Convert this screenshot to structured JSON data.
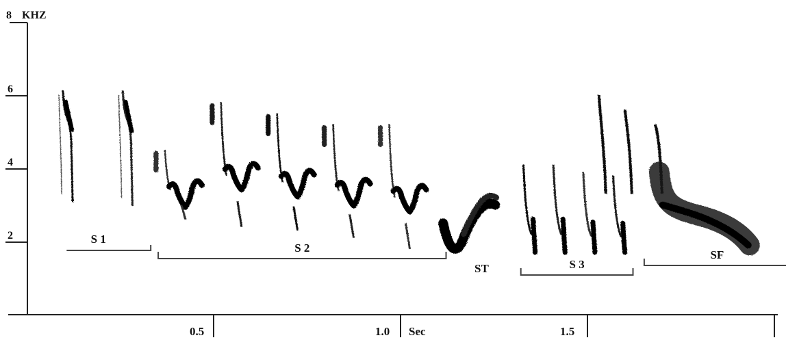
{
  "chart_data": {
    "type": "spectrogram",
    "y_axis": {
      "unit_label": "KHZ",
      "range": [
        0,
        8
      ],
      "ticks": [
        {
          "value": 8,
          "label": "8"
        },
        {
          "value": 6,
          "label": "6"
        },
        {
          "value": 4,
          "label": "4"
        },
        {
          "value": 2,
          "label": "2"
        }
      ]
    },
    "x_axis": {
      "unit_label": "Sec",
      "range": [
        0,
        2.04
      ],
      "ticks": [
        {
          "value": 0.5,
          "label": "0.5"
        },
        {
          "value": 1.0,
          "label": "1.0"
        },
        {
          "value": 1.5,
          "label": "1.5"
        },
        {
          "value": 2.0,
          "label": ""
        }
      ]
    },
    "segments": [
      {
        "label": "S 1",
        "start": 0.05,
        "end": 0.33
      },
      {
        "label": "S 2",
        "start": 0.35,
        "end": 1.12
      },
      {
        "label": "ST",
        "start": 1.13,
        "end": 1.3
      },
      {
        "label": "S 3",
        "start": 1.32,
        "end": 1.62
      },
      {
        "label": "SF",
        "start": 1.65,
        "end": 2.04
      }
    ],
    "syllables": [
      {
        "segment": "S 1",
        "time": 0.11,
        "freq_max": 6.1,
        "freq_min": 3.1
      },
      {
        "segment": "S 1",
        "time": 0.27,
        "freq_max": 6.1,
        "freq_min": 3.0
      },
      {
        "segment": "S 2",
        "time": 0.39,
        "freq_max": 4.6,
        "freq_min": 2.6
      },
      {
        "segment": "S 2",
        "time": 0.54,
        "freq_max": 5.9,
        "freq_min": 2.4
      },
      {
        "segment": "S 2",
        "time": 0.69,
        "freq_max": 5.6,
        "freq_min": 2.3
      },
      {
        "segment": "S 2",
        "time": 0.84,
        "freq_max": 5.3,
        "freq_min": 2.1
      },
      {
        "segment": "S 2",
        "time": 0.99,
        "freq_max": 5.3,
        "freq_min": 1.8
      },
      {
        "segment": "ST",
        "time": 1.2,
        "freq_max": 3.2,
        "freq_min": 1.7
      },
      {
        "segment": "S 3",
        "time": 1.36,
        "freq_max": 4.1,
        "freq_min": 1.7
      },
      {
        "segment": "S 3",
        "time": 1.44,
        "freq_max": 4.1,
        "freq_min": 1.7
      },
      {
        "segment": "S 3",
        "time": 1.52,
        "freq_max": 3.9,
        "freq_min": 1.7
      },
      {
        "segment": "S 3",
        "time": 1.6,
        "freq_max": 3.8,
        "freq_min": 1.7
      },
      {
        "segment": "SF",
        "time": 1.8,
        "freq_max": 6.0,
        "freq_min": 1.8
      }
    ]
  }
}
